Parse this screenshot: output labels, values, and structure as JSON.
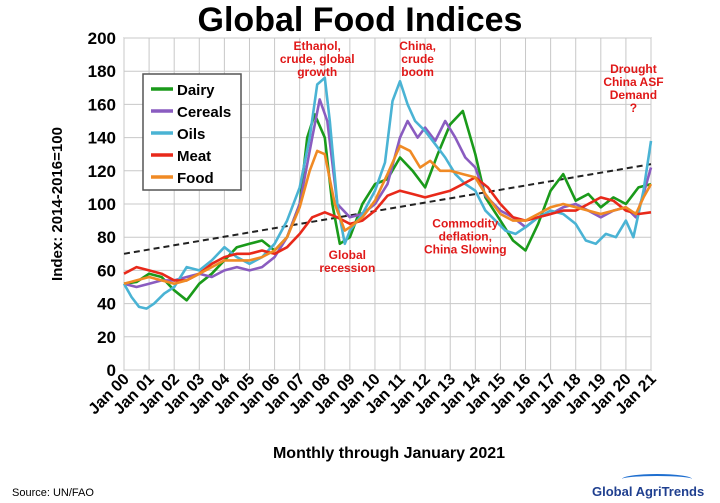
{
  "title": "Global Food Indices",
  "source": "Source: UN/FAO",
  "brand": "Global AgriTrends",
  "chart_data": {
    "type": "line",
    "title": "Global Food Indices",
    "xlabel": "Monthly through January 2021",
    "ylabel": "Index: 2014-2016=100",
    "ylim": [
      0,
      200
    ],
    "yticks": [
      0,
      20,
      40,
      60,
      80,
      100,
      120,
      140,
      160,
      180,
      200
    ],
    "x": [
      "Jan 00",
      "Jan 01",
      "Jan 02",
      "Jan 03",
      "Jan 04",
      "Jan 05",
      "Jan 06",
      "Jan 07",
      "Jan 08",
      "Jan 09",
      "Jan 10",
      "Jan 11",
      "Jan 12",
      "Jan 13",
      "Jan 14",
      "Jan 15",
      "Jan 16",
      "Jan 17",
      "Jan 18",
      "Jan 19",
      "Jan 20",
      "Jan 21"
    ],
    "grid": true,
    "legend": "top-left",
    "series": [
      {
        "name": "Dairy",
        "color": "#1a9a1a",
        "points": [
          [
            0,
            52
          ],
          [
            0.5,
            53
          ],
          [
            1,
            58
          ],
          [
            1.5,
            56
          ],
          [
            2,
            48
          ],
          [
            2.5,
            42
          ],
          [
            3,
            52
          ],
          [
            3.5,
            58
          ],
          [
            4,
            66
          ],
          [
            4.5,
            74
          ],
          [
            5,
            76
          ],
          [
            5.5,
            78
          ],
          [
            6,
            72
          ],
          [
            6.5,
            80
          ],
          [
            7,
            100
          ],
          [
            7.3,
            140
          ],
          [
            7.6,
            154
          ],
          [
            8,
            140
          ],
          [
            8.3,
            100
          ],
          [
            8.6,
            76
          ],
          [
            9,
            80
          ],
          [
            9.5,
            100
          ],
          [
            10,
            112
          ],
          [
            10.5,
            115
          ],
          [
            11,
            128
          ],
          [
            11.5,
            120
          ],
          [
            12,
            110
          ],
          [
            12.5,
            130
          ],
          [
            13,
            148
          ],
          [
            13.5,
            156
          ],
          [
            14,
            130
          ],
          [
            14.4,
            104
          ],
          [
            15,
            90
          ],
          [
            15.5,
            78
          ],
          [
            16,
            72
          ],
          [
            16.5,
            88
          ],
          [
            17,
            108
          ],
          [
            17.5,
            118
          ],
          [
            18,
            102
          ],
          [
            18.5,
            106
          ],
          [
            19,
            98
          ],
          [
            19.5,
            104
          ],
          [
            20,
            100
          ],
          [
            20.5,
            110
          ],
          [
            21,
            112
          ]
        ]
      },
      {
        "name": "Cereals",
        "color": "#8a5cc0",
        "points": [
          [
            0,
            52
          ],
          [
            0.5,
            50
          ],
          [
            1,
            52
          ],
          [
            1.5,
            54
          ],
          [
            2,
            54
          ],
          [
            2.5,
            56
          ],
          [
            3,
            58
          ],
          [
            3.5,
            56
          ],
          [
            4,
            60
          ],
          [
            4.5,
            62
          ],
          [
            5,
            60
          ],
          [
            5.5,
            62
          ],
          [
            6,
            68
          ],
          [
            6.5,
            80
          ],
          [
            7,
            100
          ],
          [
            7.5,
            140
          ],
          [
            7.8,
            163
          ],
          [
            8.1,
            150
          ],
          [
            8.5,
            100
          ],
          [
            9,
            92
          ],
          [
            9.5,
            94
          ],
          [
            10,
            100
          ],
          [
            10.5,
            112
          ],
          [
            11,
            140
          ],
          [
            11.3,
            150
          ],
          [
            11.7,
            140
          ],
          [
            12,
            146
          ],
          [
            12.4,
            138
          ],
          [
            12.8,
            150
          ],
          [
            13.2,
            140
          ],
          [
            13.6,
            128
          ],
          [
            14,
            122
          ],
          [
            14.4,
            105
          ],
          [
            15,
            96
          ],
          [
            15.5,
            92
          ],
          [
            16,
            86
          ],
          [
            16.5,
            92
          ],
          [
            17,
            94
          ],
          [
            17.5,
            98
          ],
          [
            18,
            100
          ],
          [
            18.5,
            96
          ],
          [
            19,
            92
          ],
          [
            19.5,
            96
          ],
          [
            20,
            98
          ],
          [
            20.4,
            92
          ],
          [
            20.7,
            106
          ],
          [
            21,
            122
          ]
        ]
      },
      {
        "name": "Oils",
        "color": "#4ab3d4",
        "points": [
          [
            0,
            52
          ],
          [
            0.3,
            44
          ],
          [
            0.6,
            38
          ],
          [
            0.9,
            37
          ],
          [
            1.2,
            40
          ],
          [
            1.6,
            46
          ],
          [
            2,
            50
          ],
          [
            2.5,
            62
          ],
          [
            3,
            60
          ],
          [
            3.5,
            66
          ],
          [
            4,
            74
          ],
          [
            4.5,
            68
          ],
          [
            5,
            64
          ],
          [
            5.5,
            68
          ],
          [
            6,
            76
          ],
          [
            6.5,
            90
          ],
          [
            7,
            110
          ],
          [
            7.4,
            140
          ],
          [
            7.7,
            172
          ],
          [
            8,
            176
          ],
          [
            8.2,
            150
          ],
          [
            8.5,
            100
          ],
          [
            8.8,
            76
          ],
          [
            9,
            84
          ],
          [
            9.5,
            94
          ],
          [
            10,
            108
          ],
          [
            10.4,
            125
          ],
          [
            10.7,
            162
          ],
          [
            11,
            174
          ],
          [
            11.3,
            160
          ],
          [
            11.6,
            150
          ],
          [
            12,
            144
          ],
          [
            12.4,
            136
          ],
          [
            12.8,
            128
          ],
          [
            13.2,
            118
          ],
          [
            13.6,
            112
          ],
          [
            14,
            108
          ],
          [
            14.4,
            96
          ],
          [
            14.8,
            90
          ],
          [
            15.2,
            84
          ],
          [
            15.6,
            82
          ],
          [
            16,
            86
          ],
          [
            16.5,
            92
          ],
          [
            17,
            96
          ],
          [
            17.5,
            94
          ],
          [
            18,
            88
          ],
          [
            18.4,
            78
          ],
          [
            18.8,
            76
          ],
          [
            19.2,
            82
          ],
          [
            19.6,
            80
          ],
          [
            20,
            90
          ],
          [
            20.3,
            80
          ],
          [
            20.7,
            108
          ],
          [
            21,
            138
          ]
        ]
      },
      {
        "name": "Meat",
        "color": "#e8291a",
        "points": [
          [
            0,
            58
          ],
          [
            0.5,
            62
          ],
          [
            1,
            60
          ],
          [
            1.5,
            58
          ],
          [
            2,
            54
          ],
          [
            2.5,
            54
          ],
          [
            3,
            58
          ],
          [
            3.5,
            64
          ],
          [
            4,
            68
          ],
          [
            4.5,
            70
          ],
          [
            5,
            70
          ],
          [
            5.5,
            72
          ],
          [
            6,
            70
          ],
          [
            6.5,
            74
          ],
          [
            7,
            82
          ],
          [
            7.5,
            92
          ],
          [
            8,
            95
          ],
          [
            8.5,
            92
          ],
          [
            9,
            88
          ],
          [
            9.5,
            90
          ],
          [
            10,
            96
          ],
          [
            10.5,
            105
          ],
          [
            11,
            108
          ],
          [
            11.5,
            106
          ],
          [
            12,
            104
          ],
          [
            12.5,
            106
          ],
          [
            13,
            108
          ],
          [
            13.5,
            112
          ],
          [
            14,
            116
          ],
          [
            14.5,
            110
          ],
          [
            15,
            100
          ],
          [
            15.5,
            92
          ],
          [
            16,
            90
          ],
          [
            16.5,
            92
          ],
          [
            17,
            94
          ],
          [
            17.5,
            96
          ],
          [
            18,
            96
          ],
          [
            18.5,
            100
          ],
          [
            19,
            104
          ],
          [
            19.5,
            102
          ],
          [
            20,
            96
          ],
          [
            20.5,
            94
          ],
          [
            21,
            95
          ]
        ]
      },
      {
        "name": "Food",
        "color": "#f08a24",
        "points": [
          [
            0,
            52
          ],
          [
            0.5,
            54
          ],
          [
            1,
            56
          ],
          [
            1.5,
            54
          ],
          [
            2,
            52
          ],
          [
            2.5,
            54
          ],
          [
            3,
            58
          ],
          [
            3.5,
            62
          ],
          [
            4,
            66
          ],
          [
            4.5,
            66
          ],
          [
            5,
            66
          ],
          [
            5.5,
            68
          ],
          [
            6,
            72
          ],
          [
            6.5,
            80
          ],
          [
            7,
            98
          ],
          [
            7.4,
            120
          ],
          [
            7.7,
            132
          ],
          [
            8,
            130
          ],
          [
            8.4,
            100
          ],
          [
            8.8,
            84
          ],
          [
            9,
            86
          ],
          [
            9.5,
            92
          ],
          [
            10,
            102
          ],
          [
            10.5,
            118
          ],
          [
            11,
            135
          ],
          [
            11.4,
            132
          ],
          [
            11.8,
            122
          ],
          [
            12.2,
            126
          ],
          [
            12.6,
            120
          ],
          [
            13,
            120
          ],
          [
            13.5,
            118
          ],
          [
            14,
            116
          ],
          [
            14.4,
            106
          ],
          [
            15,
            94
          ],
          [
            15.5,
            90
          ],
          [
            16,
            90
          ],
          [
            16.5,
            94
          ],
          [
            17,
            98
          ],
          [
            17.5,
            100
          ],
          [
            18,
            98
          ],
          [
            18.5,
            96
          ],
          [
            19,
            94
          ],
          [
            19.5,
            96
          ],
          [
            20,
            98
          ],
          [
            20.4,
            94
          ],
          [
            20.7,
            104
          ],
          [
            21,
            112
          ]
        ]
      }
    ],
    "trendline": {
      "style": "dashed",
      "color": "#222222",
      "start": [
        0,
        70
      ],
      "end": [
        21,
        124
      ]
    },
    "annotations": [
      {
        "text": "Ethanol,\ncrude, global\ngrowth",
        "at": [
          7.7,
          200
        ]
      },
      {
        "text": "China,\ncrude\nboom",
        "at": [
          11.7,
          200
        ]
      },
      {
        "text": "Drought\nChina ASF\nDemand\n?",
        "at": [
          20.3,
          186
        ]
      },
      {
        "text": "Commodity\ndeflation,\nChina Slowing",
        "at": [
          13.6,
          93
        ]
      },
      {
        "text": "Global\nrecession",
        "at": [
          8.9,
          74
        ]
      }
    ]
  }
}
